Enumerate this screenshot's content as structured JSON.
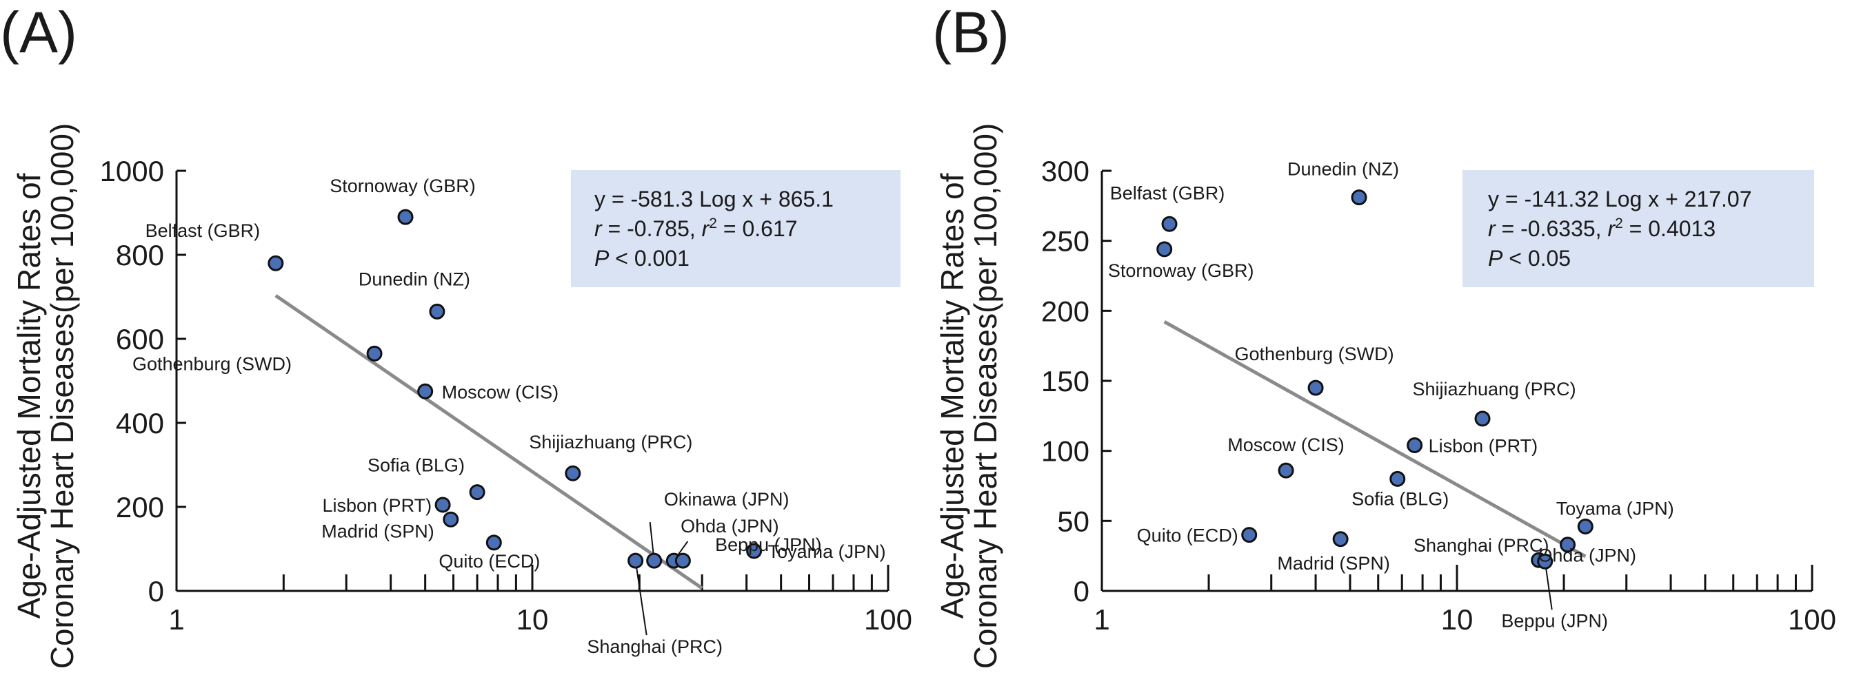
{
  "figure": {
    "panels": [
      {
        "letter": "(A)",
        "ylabel_line1": "Age-Adjusted Mortality Rates of",
        "ylabel_line2": "Coronary Heart Diseases(per 100,000)",
        "equation": {
          "line1": "y = -581.3 Log x + 865.1",
          "r": "r",
          "r_val": " = -0.785, ",
          "r2": "r",
          "r2_sup": "2",
          "r2_val": " = 0.617",
          "p": "P",
          "p_val": " < 0.001"
        }
      },
      {
        "letter": "(B)",
        "ylabel_line1": "Age-Adjusted Mortality Rates of",
        "ylabel_line2": "Coronary Heart Diseases(per 100,000)",
        "equation": {
          "line1": "y = -141.32 Log x + 217.07",
          "r": "r",
          "r_val": " = -0.6335, ",
          "r2": "r",
          "r2_sup": "2",
          "r2_val": " = 0.4013",
          "p": "P",
          "p_val": " < 0.05"
        }
      }
    ]
  },
  "colors": {
    "marker": "#4a6fb5",
    "marker_edge": "#111111",
    "trend": "#8a8a8a",
    "eq_box": "#dae3f3",
    "axis": "#111111"
  },
  "chart_data": [
    {
      "type": "scatter",
      "title": "(A)",
      "xscale": "log",
      "xlim": [
        1,
        100
      ],
      "ylim": [
        0,
        1000
      ],
      "xticks": [
        1,
        10,
        100
      ],
      "yticks": [
        0,
        200,
        400,
        600,
        800,
        1000
      ],
      "ylabel": "Age-Adjusted Mortality Rates of Coronary Heart Diseases(per 100,000)",
      "trendline": {
        "slope": -581.3,
        "intercept": 865.1,
        "x_range": [
          1.9,
          30
        ]
      },
      "points": [
        {
          "label": "Stornoway (GBR)",
          "x": 4.4,
          "y": 890
        },
        {
          "label": "Belfast (GBR)",
          "x": 1.9,
          "y": 780
        },
        {
          "label": "Dunedin (NZ)",
          "x": 5.4,
          "y": 665
        },
        {
          "label": "Gothenburg (SWD)",
          "x": 3.6,
          "y": 565
        },
        {
          "label": "Moscow (CIS)",
          "x": 5.0,
          "y": 475
        },
        {
          "label": "Shijiazhuang (PRC)",
          "x": 13.0,
          "y": 280
        },
        {
          "label": "Sofia (BLG)",
          "x": 7.0,
          "y": 235
        },
        {
          "label": "Lisbon (PRT)",
          "x": 5.6,
          "y": 205
        },
        {
          "label": "Madrid (SPN)",
          "x": 5.9,
          "y": 170
        },
        {
          "label": "Quito (ECD)",
          "x": 7.8,
          "y": 115
        },
        {
          "label": "Okinawa (JPN)",
          "x": 22,
          "y": 72
        },
        {
          "label": "Ohda (JPN)",
          "x": 25,
          "y": 72
        },
        {
          "label": "Beppu (JPN)",
          "x": 26.5,
          "y": 72
        },
        {
          "label": "Shanghai (PRC)",
          "x": 19.5,
          "y": 72
        },
        {
          "label": "Toyama (JPN)",
          "x": 42,
          "y": 95
        }
      ]
    },
    {
      "type": "scatter",
      "title": "(B)",
      "xscale": "log",
      "xlim": [
        1,
        100
      ],
      "ylim": [
        0,
        300
      ],
      "xticks": [
        1,
        10,
        100
      ],
      "yticks": [
        0,
        50,
        100,
        150,
        200,
        250,
        300
      ],
      "ylabel": "Age-Adjusted Mortality Rates of Coronary Heart Diseases(per 100,000)",
      "trendline": {
        "slope": -141.32,
        "intercept": 217.07,
        "x_range": [
          1.5,
          23
        ]
      },
      "points": [
        {
          "label": "Dunedin (NZ)",
          "x": 5.3,
          "y": 281
        },
        {
          "label": "Belfast (GBR)",
          "x": 1.55,
          "y": 262
        },
        {
          "label": "Stornoway (GBR)",
          "x": 1.5,
          "y": 244
        },
        {
          "label": "Gothenburg (SWD)",
          "x": 4.0,
          "y": 145
        },
        {
          "label": "Shijiazhuang (PRC)",
          "x": 11.8,
          "y": 123
        },
        {
          "label": "Lisbon (PRT)",
          "x": 7.6,
          "y": 104
        },
        {
          "label": "Moscow (CIS)",
          "x": 3.3,
          "y": 86
        },
        {
          "label": "Sofia (BLG)",
          "x": 6.8,
          "y": 80
        },
        {
          "label": "Toyama (JPN)",
          "x": 23,
          "y": 46
        },
        {
          "label": "Quito (ECD)",
          "x": 2.6,
          "y": 40
        },
        {
          "label": "Madrid (SPN)",
          "x": 4.7,
          "y": 37
        },
        {
          "label": "Shanghai (PRC)",
          "x": 20.5,
          "y": 33
        },
        {
          "label": "Ohda (JPN)",
          "x": 17.0,
          "y": 22
        },
        {
          "label": "Beppu (JPN)",
          "x": 17.7,
          "y": 21
        }
      ]
    }
  ]
}
